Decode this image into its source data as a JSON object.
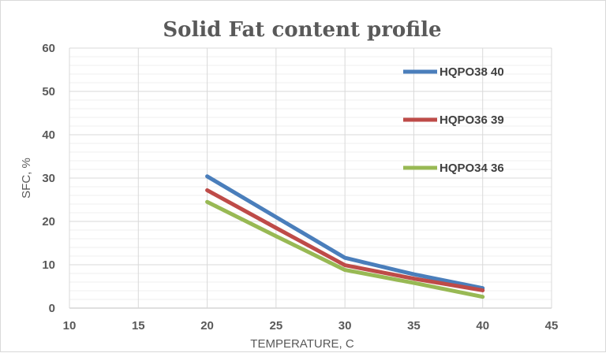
{
  "chart_data": {
    "type": "line",
    "title": "Solid Fat content profile",
    "xlabel": "TEMPERATURE, C",
    "ylabel": "SFC, %",
    "xlim": [
      10,
      45
    ],
    "ylim": [
      0,
      60
    ],
    "xticks": [
      10,
      15,
      20,
      25,
      30,
      35,
      40,
      45
    ],
    "yticks": [
      0,
      10,
      20,
      30,
      40,
      50,
      60
    ],
    "grid": true,
    "legend_position": "right",
    "series": [
      {
        "name": "HQPO38 40",
        "color": "#4a7ebb",
        "x": [
          20,
          25,
          30,
          35,
          40
        ],
        "y": [
          30.4,
          21.0,
          11.6,
          7.8,
          4.6
        ]
      },
      {
        "name": "HQPO36 39",
        "color": "#be4b48",
        "x": [
          20,
          25,
          30,
          35,
          40
        ],
        "y": [
          27.2,
          18.5,
          9.9,
          6.8,
          4.1
        ]
      },
      {
        "name": "HQPO34 36",
        "color": "#98b954",
        "x": [
          20,
          25,
          30,
          35,
          40
        ],
        "y": [
          24.5,
          16.6,
          8.8,
          5.8,
          2.6
        ]
      }
    ]
  }
}
